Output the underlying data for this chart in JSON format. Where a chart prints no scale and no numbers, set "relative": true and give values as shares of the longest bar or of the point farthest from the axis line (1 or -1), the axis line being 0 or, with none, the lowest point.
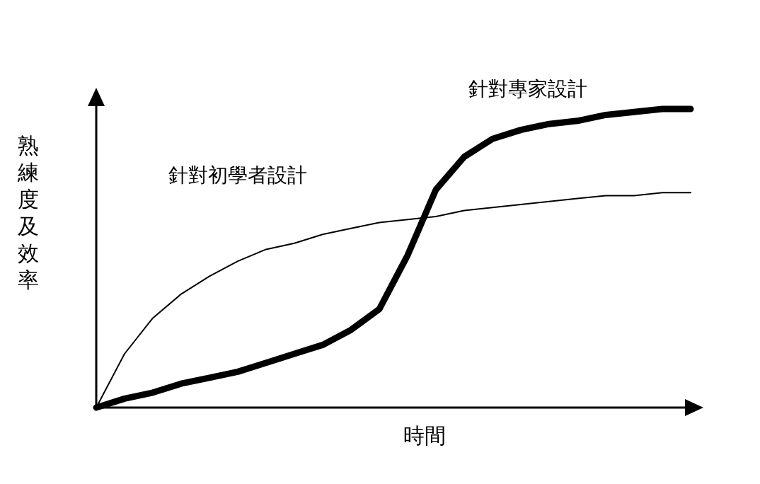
{
  "chart_data": {
    "type": "line",
    "relative": true,
    "xlabel": "時間",
    "ylabel": "熟練度及效率",
    "categories": [
      null,
      null,
      null,
      null,
      null,
      null,
      null,
      null,
      null,
      null,
      null,
      null,
      null,
      null,
      null,
      null,
      null,
      null,
      null,
      null,
      null,
      null
    ],
    "series": [
      {
        "name": "針對初學者設計",
        "color": "#000000",
        "values": [
          0,
          0.18,
          0.3,
          0.38,
          0.44,
          0.49,
          0.53,
          0.55,
          0.58,
          0.6,
          0.62,
          0.63,
          0.64,
          0.66,
          0.67,
          0.68,
          0.69,
          0.7,
          0.71,
          0.71,
          0.72,
          0.72
        ]
      },
      {
        "name": "針對專家設計",
        "color": "#000000",
        "values": [
          0,
          0.03,
          0.05,
          0.08,
          0.1,
          0.12,
          0.15,
          0.18,
          0.21,
          0.26,
          0.33,
          0.51,
          0.73,
          0.84,
          0.9,
          0.93,
          0.95,
          0.96,
          0.98,
          0.99,
          1.0,
          1.0
        ]
      }
    ]
  }
}
